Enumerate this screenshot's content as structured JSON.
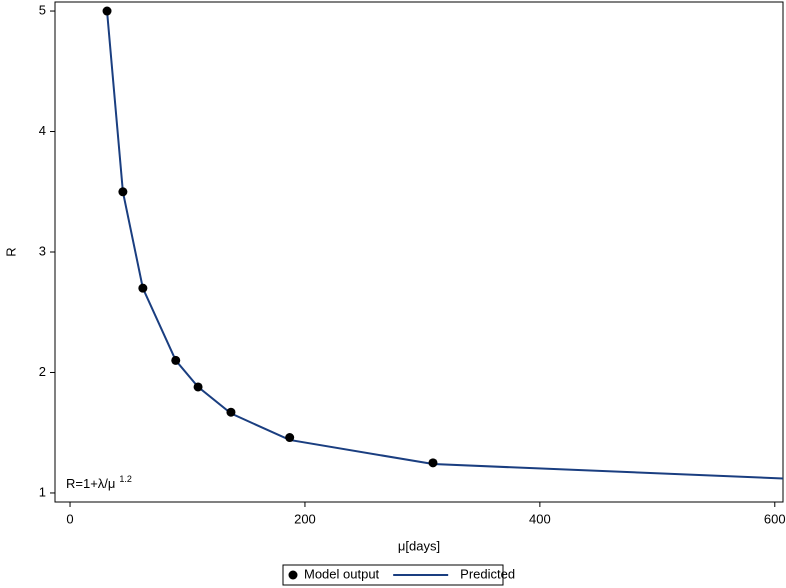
{
  "chart_data": {
    "type": "line",
    "x_label": "μ[days]",
    "y_label": "R",
    "annotation": {
      "text": "R=1+λ/μ",
      "superscript": "1.2"
    },
    "xlim": [
      -12.8,
      607
    ],
    "ylim": [
      0.925,
      5.075
    ],
    "xticks": [
      0,
      200,
      400,
      600
    ],
    "yticks": [
      1,
      2,
      3,
      4,
      5
    ],
    "grid": false,
    "legend": "bottom",
    "series": [
      {
        "name": "Model output",
        "type": "scatter",
        "color": "#000000",
        "x": [
          31.5,
          45,
          62,
          90,
          109,
          137,
          187,
          309
        ],
        "values": [
          5.0,
          3.5,
          2.7,
          2.1,
          1.88,
          1.67,
          1.46,
          1.25
        ]
      },
      {
        "name": "Predicted",
        "type": "line",
        "color": "#1a3e80",
        "x": [
          31.5,
          45,
          62,
          90,
          109,
          137,
          187,
          309,
          607
        ],
        "values": [
          5.0,
          3.5,
          2.7,
          2.1,
          1.88,
          1.66,
          1.44,
          1.24,
          1.12
        ]
      }
    ]
  }
}
